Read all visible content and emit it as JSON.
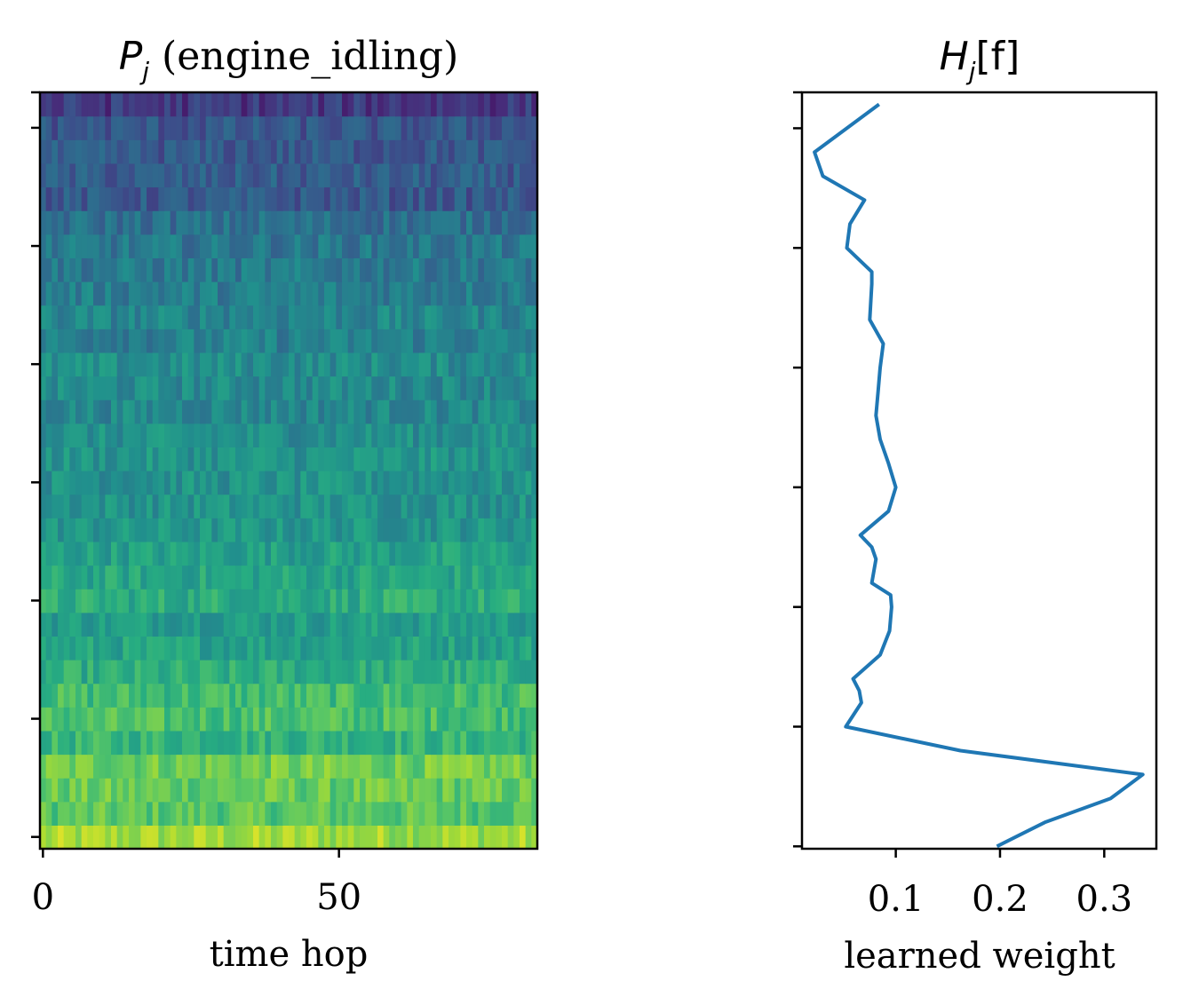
{
  "chart_data": [
    {
      "type": "heatmap",
      "title_symbol": "P",
      "title_subscript": "j",
      "title_rest": " (engine_idling)",
      "xlabel": "time hop",
      "ylabel": "",
      "xlim": [
        -0.5,
        83.5
      ],
      "xticks": [
        0,
        50
      ],
      "xtick_labels": [
        "0",
        "50"
      ],
      "rows": 32,
      "cols": 84,
      "ytick_rows": [
        0,
        5,
        10,
        15,
        20,
        25,
        30,
        31.5
      ],
      "colormap": "viridis",
      "orientation": "row 0 at bottom (low frequency), brightest",
      "row_mean_intensity": [
        0.86,
        0.74,
        0.76,
        0.78,
        0.66,
        0.71,
        0.69,
        0.62,
        0.58,
        0.56,
        0.62,
        0.59,
        0.57,
        0.53,
        0.52,
        0.51,
        0.52,
        0.5,
        0.47,
        0.48,
        0.49,
        0.44,
        0.46,
        0.43,
        0.41,
        0.4,
        0.37,
        0.28,
        0.29,
        0.28,
        0.27,
        0.25
      ],
      "noise_amplitude": 0.09
    },
    {
      "type": "line",
      "title_symbol": "H",
      "title_subscript": "j",
      "title_rest": "[f]",
      "xlabel": "learned weight",
      "ylabel": "",
      "xlim": [
        0.01,
        0.35
      ],
      "ylim": [
        -0.1,
        31.5
      ],
      "xticks": [
        0.1,
        0.2,
        0.3
      ],
      "xtick_labels": [
        "0.1",
        "0.2",
        "0.3"
      ],
      "ytick_rows": [
        0,
        5,
        10,
        15,
        20,
        25,
        30,
        31.5
      ],
      "series": [
        {
          "color": "#1f77b4",
          "x": [
            0.197,
            0.243,
            0.306,
            0.337,
            0.162,
            0.052,
            0.067,
            0.065,
            0.059,
            0.085,
            0.094,
            0.096,
            0.095,
            0.077,
            0.081,
            0.077,
            0.066,
            0.093,
            0.1,
            0.093,
            0.085,
            0.081,
            0.083,
            0.085,
            0.088,
            0.075,
            0.077,
            0.077,
            0.053,
            0.056,
            0.07,
            0.03,
            0.022,
            0.084
          ],
          "y": [
            0,
            1,
            2,
            3,
            4,
            5,
            6,
            6.5,
            7,
            8,
            9,
            10,
            10.5,
            11,
            12,
            12.5,
            13,
            14,
            15,
            16,
            17,
            18,
            19,
            20,
            21,
            22,
            23.5,
            24,
            25,
            26,
            27,
            28,
            29,
            31
          ]
        }
      ]
    }
  ]
}
